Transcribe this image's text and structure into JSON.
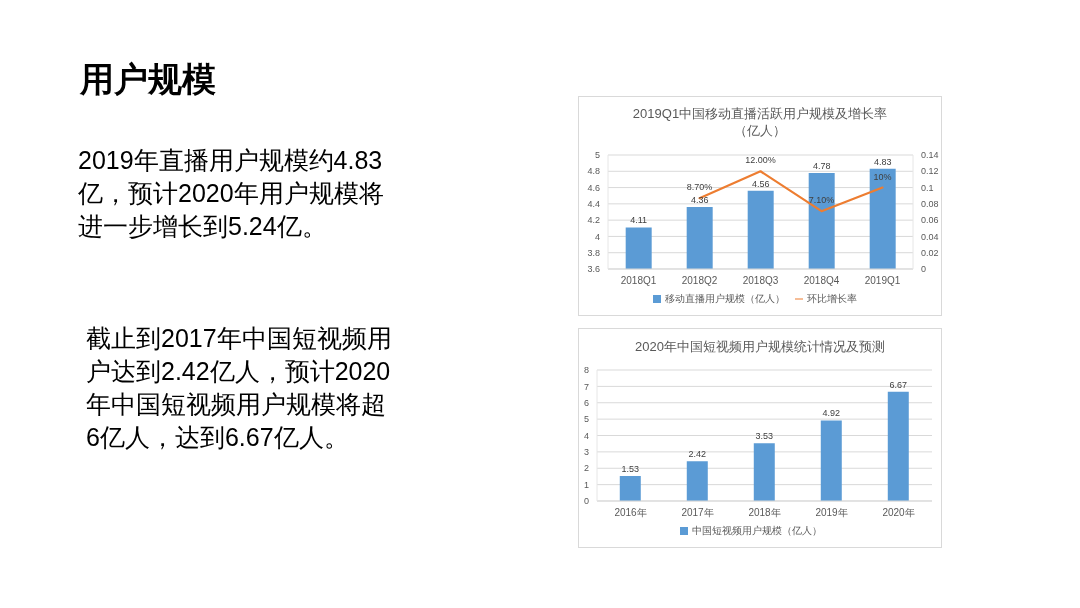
{
  "chart_data": [
    {
      "type": "other",
      "title": "用户规模",
      "annotations": [
        "2019年直播用户规模约4.83亿，预计2020年用户规模将进一步增长到5.24亿。",
        "截止到2017年中国短视频用户达到2.42亿人，预计2020年中国短视频用户规模将超6亿人，达到6.67亿人。"
      ]
    },
    {
      "type": "bar",
      "title": "2019Q1中国移动直播活跃用户规模及增长率（亿人）",
      "categories": [
        "2018Q1",
        "2018Q2",
        "2018Q3",
        "2018Q4",
        "2019Q1"
      ],
      "series": [
        {
          "name": "移动直播用户规模（亿人）",
          "color": "#5b9bd5",
          "values": [
            4.11,
            4.36,
            4.56,
            4.78,
            4.83
          ],
          "value_labels": [
            "4.11",
            "4.36",
            "4.56",
            "4.78",
            "4.83"
          ]
        },
        {
          "name": "环比增长率",
          "type": "line",
          "axis": "y2",
          "color": "#ed7d31",
          "values": [
            null,
            0.087,
            0.12,
            0.071,
            0.1
          ],
          "value_labels": [
            null,
            "8.70%",
            "12.00%",
            "7.10%",
            "10%"
          ]
        }
      ],
      "ylim": [
        3.6,
        5
      ],
      "yticks": [
        3.6,
        3.8,
        4,
        4.2,
        4.4,
        4.6,
        4.8,
        5
      ],
      "y2lim": [
        0,
        0.14
      ],
      "y2ticks": [
        0,
        0.02,
        0.04,
        0.06,
        0.08,
        0.1,
        0.12,
        0.14
      ],
      "grid": "y",
      "legend": "bottom",
      "marker": "none"
    },
    {
      "type": "bar",
      "title": "2020年中国短视频用户规模统计情况及预测",
      "categories": [
        "2016年",
        "2017年",
        "2018年",
        "2019年",
        "2020年"
      ],
      "series": [
        {
          "name": "中国短视频用户规模（亿人）",
          "color": "#5b9bd5",
          "values": [
            1.53,
            2.42,
            3.53,
            4.92,
            6.67
          ]
        }
      ],
      "ylim": [
        0,
        8
      ],
      "yticks": [
        0,
        1,
        2,
        3,
        4,
        5,
        6,
        7,
        8
      ],
      "grid": "y",
      "legend": "bottom",
      "data_labels": true
    }
  ]
}
